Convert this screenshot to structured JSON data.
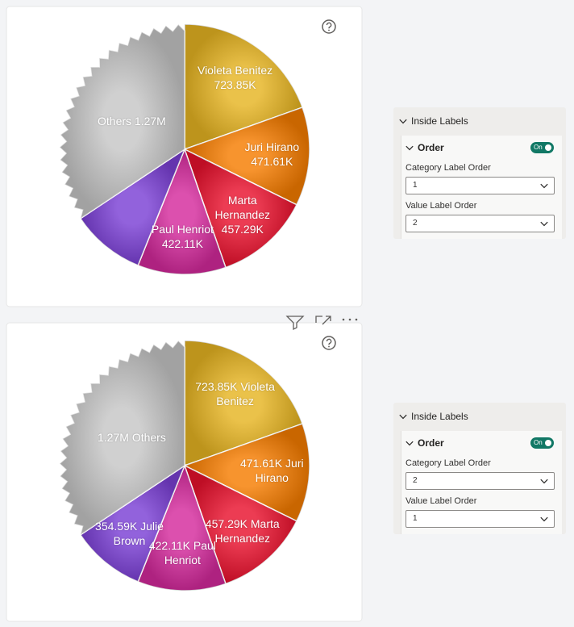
{
  "chart_data": [
    {
      "type": "pie",
      "categories": [
        "Violeta Benitez",
        "Juri Hirano",
        "Marta Hernandez",
        "Paul Henriot",
        null,
        "Others"
      ],
      "values": [
        723850,
        471610,
        457290,
        422110,
        354590,
        1270000
      ],
      "value_labels": [
        "723.85K",
        "471.61K",
        "457.29K",
        "422.11K",
        null,
        "1.27M"
      ],
      "colors": [
        "#e6b422",
        "#f57c00",
        "#e8112d",
        "#d42a9c",
        "#7a3fd4",
        "#c6c6c6"
      ]
    },
    {
      "type": "pie",
      "categories": [
        "Violeta Benitez",
        "Juri Hirano",
        "Marta Hernandez",
        "Paul Henriot",
        "Julie Brown",
        "Others"
      ],
      "values": [
        723850,
        471610,
        457290,
        422110,
        354590,
        1270000
      ],
      "value_labels": [
        "723.85K",
        "471.61K",
        "457.29K",
        "422.11K",
        "354.59K",
        "1.27M"
      ],
      "colors": [
        "#e6b422",
        "#f57c00",
        "#e8112d",
        "#d42a9c",
        "#7a3fd4",
        "#c6c6c6"
      ]
    }
  ],
  "panels": [
    {
      "title": "Inside Labels",
      "section": "Order",
      "toggle": "On",
      "category_label_order_label": "Category Label Order",
      "category_label_order": 1,
      "value_label_order_label": "Value Label Order",
      "value_label_order": 2
    },
    {
      "title": "Inside Labels",
      "section": "Order",
      "toggle": "On",
      "category_label_order_label": "Category Label Order",
      "category_label_order": 2,
      "value_label_order_label": "Value Label Order",
      "value_label_order": 1
    }
  ]
}
